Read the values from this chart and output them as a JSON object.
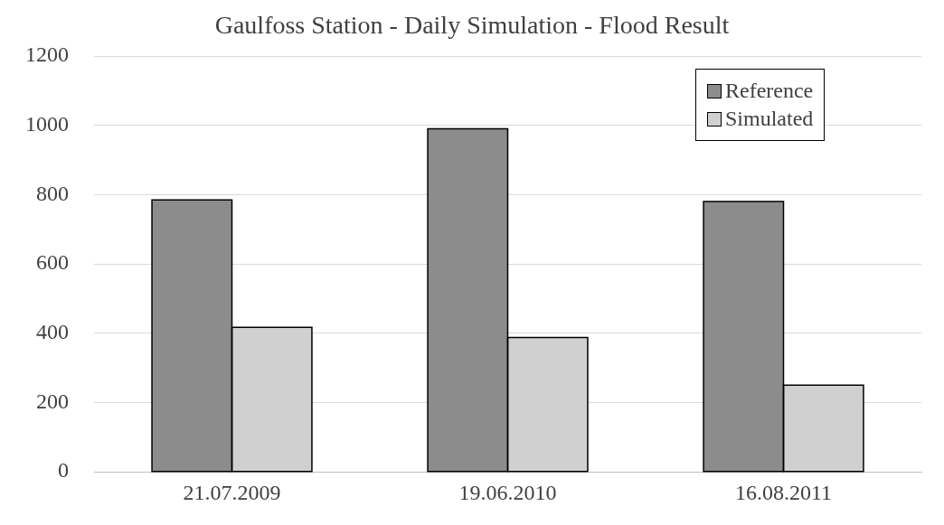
{
  "chart_data": {
    "type": "bar",
    "title": "Gaulfoss Station - Daily Simulation - Flood Result",
    "categories": [
      "21.07.2009",
      "19.06.2010",
      "16.08.2011"
    ],
    "series": [
      {
        "name": "Reference",
        "color": "#8c8c8c",
        "values": [
          785,
          990,
          780
        ]
      },
      {
        "name": "Simulated",
        "color": "#d0d0d0",
        "values": [
          417,
          388,
          250
        ]
      }
    ],
    "ylim": [
      0,
      1200
    ],
    "yticks": [
      0,
      200,
      400,
      600,
      800,
      1000,
      1200
    ],
    "grid": "y",
    "legend": "top right"
  }
}
